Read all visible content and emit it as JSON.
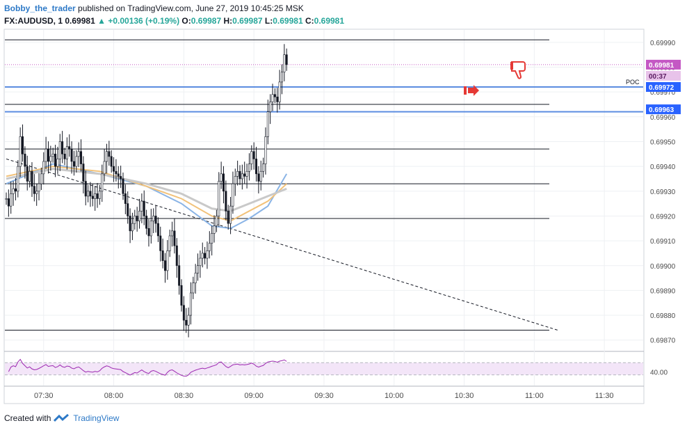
{
  "header": {
    "author": "Bobby_the_trader",
    "published_text": " published on TradingView.com, June 27, 2019 10:45:25 MSK",
    "symbol": "FX:AUDUSD, 1",
    "last": "0.69981",
    "change": "+0.00136 (+0.19%)",
    "o_label": "O:",
    "o_val": "0.69987",
    "h_label": "H:",
    "h_val": "0.69987",
    "l_label": "L:",
    "l_val": "0.69981",
    "c_label": "C:",
    "c_val": "0.69981"
  },
  "footer": {
    "created_with": "Created with",
    "brand": "TradingView"
  },
  "colors": {
    "up": "#26a69a",
    "candle": "#131722",
    "sma_blue": "#8ab4e6",
    "sma_orange": "#f2c27a",
    "sma_gray": "#c9c9c9",
    "hline": "#2962ff",
    "price_tag": "#c458c4",
    "rsi": "#9c27b0",
    "rsi_band": "#f3e5f8",
    "marker_red": "#e53935"
  },
  "chart_data": {
    "type": "candlestick",
    "price_axis_ticks": [
      "0.69990",
      "0.69980",
      "0.69970",
      "0.69960",
      "0.69950",
      "0.69940",
      "0.69930",
      "0.69920",
      "0.69910",
      "0.69900",
      "0.69890",
      "0.69880",
      "0.69870"
    ],
    "time_axis_ticks": [
      "07:30",
      "08:00",
      "08:30",
      "09:00",
      "09:30",
      "10:00",
      "10:30",
      "11:00",
      "11:30"
    ],
    "ylim": [
      0.69866,
      0.69995
    ],
    "price_labels": {
      "last": "0.69981",
      "countdown": "00:37",
      "poc_value": "0.69972",
      "poc_label": "POC",
      "level_2": "0.69963"
    },
    "horizontal_levels": [
      0.69991,
      0.69965,
      0.69947,
      0.69933,
      0.69919,
      0.69874
    ],
    "blue_levels": [
      0.69972,
      0.69962
    ],
    "trendline": {
      "from": [
        "07:14",
        0.69943
      ],
      "to": [
        "11:10",
        0.69874
      ]
    },
    "close_series": [
      0.69927,
      0.69924,
      0.69929,
      0.69931,
      0.6993,
      0.6994,
      0.69952,
      0.69945,
      0.6994,
      0.69934,
      0.69938,
      0.69932,
      0.69929,
      0.6993,
      0.69933,
      0.69937,
      0.69942,
      0.69947,
      0.69942,
      0.69944,
      0.69945,
      0.6994,
      0.69943,
      0.6995,
      0.69945,
      0.69943,
      0.69948,
      0.69947,
      0.69942,
      0.6994,
      0.69944,
      0.69946,
      0.69941,
      0.69934,
      0.69928,
      0.6993,
      0.69928,
      0.69927,
      0.69929,
      0.69927,
      0.6993,
      0.69937,
      0.69942,
      0.69946,
      0.69944,
      0.6994,
      0.69938,
      0.69937,
      0.69936,
      0.69935,
      0.69929,
      0.69925,
      0.6992,
      0.69914,
      0.69917,
      0.6992,
      0.69918,
      0.69922,
      0.69926,
      0.6992,
      0.69915,
      0.69912,
      0.69918,
      0.6992,
      0.69917,
      0.69912,
      0.69906,
      0.69902,
      0.69898,
      0.69906,
      0.69912,
      0.69914,
      0.69908,
      0.699,
      0.69892,
      0.69884,
      0.69878,
      0.69876,
      0.6988,
      0.69889,
      0.69893,
      0.69897,
      0.699,
      0.69903,
      0.69905,
      0.69903,
      0.69906,
      0.69909,
      0.69913,
      0.69916,
      0.6992,
      0.69934,
      0.69937,
      0.6993,
      0.69922,
      0.69917,
      0.69924,
      0.69933,
      0.69936,
      0.69938,
      0.69935,
      0.69937,
      0.69936,
      0.69938,
      0.69941,
      0.69946,
      0.69943,
      0.69937,
      0.69934,
      0.69938,
      0.69941,
      0.69952,
      0.69962,
      0.69966,
      0.69969,
      0.69968,
      0.69966,
      0.69974,
      0.69978,
      0.69985,
      0.69981
    ],
    "moving_averages": [
      {
        "color": "blue",
        "points": [
          [
            0,
            0.69933
          ],
          [
            20,
            0.69941
          ],
          [
            40,
            0.69937
          ],
          [
            60,
            0.69932
          ],
          [
            75,
            0.69925
          ],
          [
            88,
            0.69916
          ],
          [
            96,
            0.69915
          ],
          [
            104,
            0.69919
          ],
          [
            112,
            0.69924
          ],
          [
            120,
            0.69937
          ]
        ]
      },
      {
        "color": "orange",
        "points": [
          [
            0,
            0.69936
          ],
          [
            20,
            0.6994
          ],
          [
            40,
            0.69938
          ],
          [
            60,
            0.69932
          ],
          [
            75,
            0.69927
          ],
          [
            88,
            0.6992
          ],
          [
            96,
            0.69918
          ],
          [
            104,
            0.69922
          ],
          [
            112,
            0.69926
          ],
          [
            120,
            0.69933
          ]
        ]
      },
      {
        "color": "gray",
        "points": [
          [
            0,
            0.69935
          ],
          [
            20,
            0.69939
          ],
          [
            40,
            0.69937
          ],
          [
            60,
            0.69933
          ],
          [
            75,
            0.69929
          ],
          [
            88,
            0.69923
          ],
          [
            96,
            0.69922
          ],
          [
            104,
            0.69925
          ],
          [
            112,
            0.69928
          ],
          [
            120,
            0.69931
          ]
        ]
      }
    ],
    "rsi": {
      "label": "40.00",
      "upper_band": 70,
      "lower_band": 30
    }
  }
}
